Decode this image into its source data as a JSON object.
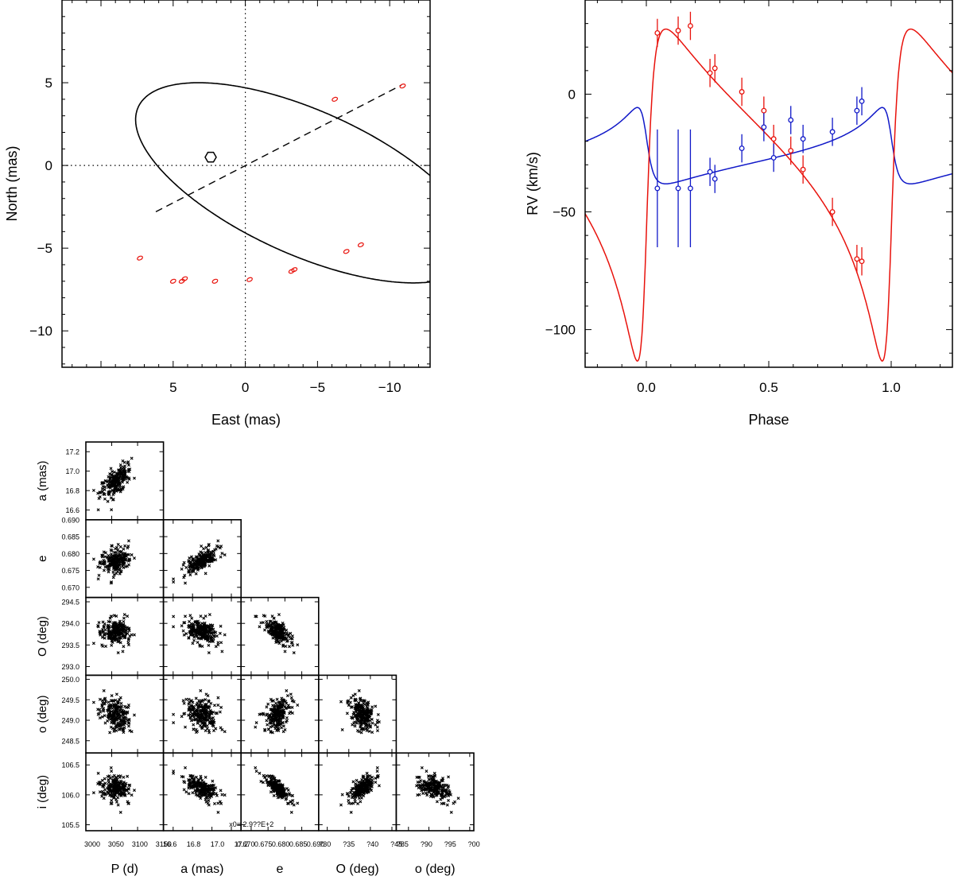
{
  "chart_data": [
    {
      "id": "orbit",
      "type": "line",
      "title": "",
      "xlabel": "East (mas)",
      "ylabel": "North (mas)",
      "xlim": [
        12.7,
        -12.8
      ],
      "ylim": [
        -12.2,
        10.0
      ],
      "xticks": [
        5,
        0,
        -5,
        -10
      ],
      "yticks": [
        5,
        0,
        -5,
        -10
      ],
      "xtick_labels": [
        "5",
        "0",
        "−5",
        "−10"
      ],
      "ytick_labels": [
        "5",
        "0",
        "−5",
        "−10"
      ],
      "orbit": {
        "a": 17.0,
        "e": 0.678,
        "Omega_deg": 293.8,
        "omega_deg": 249.1,
        "i_deg": 106.1
      },
      "primary": {
        "x": 2.4,
        "y": 0.5
      },
      "line_of_nodes": [
        [
          6.2,
          -2.8
        ],
        [
          -10.8,
          4.85
        ]
      ],
      "observations": [
        {
          "x": 7.3,
          "y": -5.6
        },
        {
          "x": 5.0,
          "y": -7.0
        },
        {
          "x": 4.4,
          "y": -7.0
        },
        {
          "x": 4.2,
          "y": -6.85
        },
        {
          "x": 2.1,
          "y": -7.0
        },
        {
          "x": -0.3,
          "y": -6.9
        },
        {
          "x": -3.2,
          "y": -6.4
        },
        {
          "x": -3.4,
          "y": -6.3
        },
        {
          "x": -6.2,
          "y": 4.0
        },
        {
          "x": -7.0,
          "y": -5.2
        },
        {
          "x": -8.0,
          "y": -4.8
        },
        {
          "x": -10.9,
          "y": 4.8
        }
      ]
    },
    {
      "id": "rv",
      "type": "line",
      "title": "",
      "xlabel": "Phase",
      "ylabel": "RV (km/s)",
      "xlim": [
        -0.25,
        1.25
      ],
      "ylim": [
        -116,
        40
      ],
      "xticks": [
        0.0,
        0.5,
        1.0
      ],
      "yticks": [
        0,
        -50,
        -100
      ],
      "xtick_labels": [
        "0.0",
        "0.5",
        "1.0"
      ],
      "ytick_labels": [
        "0",
        "−50",
        "−100"
      ],
      "model": {
        "gamma": -25.8,
        "K_red": 70.5,
        "K_blue": 16.2,
        "e": 0.678,
        "omega_deg": 249.1,
        "phase_offset": 0.0
      },
      "series": [
        {
          "name": "red component",
          "color": "#e8120c",
          "points": [
            {
              "phase": 0.045,
              "rv": 26,
              "err": 6
            },
            {
              "phase": 0.13,
              "rv": 27,
              "err": 6
            },
            {
              "phase": 0.18,
              "rv": 29,
              "err": 6
            },
            {
              "phase": 0.26,
              "rv": 9,
              "err": 6
            },
            {
              "phase": 0.28,
              "rv": 11,
              "err": 6
            },
            {
              "phase": 0.39,
              "rv": 1,
              "err": 6
            },
            {
              "phase": 0.48,
              "rv": -7,
              "err": 6
            },
            {
              "phase": 0.52,
              "rv": -19,
              "err": 6
            },
            {
              "phase": 0.59,
              "rv": -24,
              "err": 6
            },
            {
              "phase": 0.64,
              "rv": -32,
              "err": 6
            },
            {
              "phase": 0.76,
              "rv": -50,
              "err": 6
            },
            {
              "phase": 0.86,
              "rv": -70,
              "err": 6
            },
            {
              "phase": 0.88,
              "rv": -71,
              "err": 6
            }
          ]
        },
        {
          "name": "blue component",
          "color": "#1018c8",
          "points": [
            {
              "phase": 0.045,
              "rv": -40,
              "err": 25
            },
            {
              "phase": 0.13,
              "rv": -40,
              "err": 25
            },
            {
              "phase": 0.18,
              "rv": -40,
              "err": 25
            },
            {
              "phase": 0.26,
              "rv": -33,
              "err": 6
            },
            {
              "phase": 0.28,
              "rv": -36,
              "err": 6
            },
            {
              "phase": 0.39,
              "rv": -23,
              "err": 6
            },
            {
              "phase": 0.48,
              "rv": -14,
              "err": 6
            },
            {
              "phase": 0.52,
              "rv": -27,
              "err": 6
            },
            {
              "phase": 0.59,
              "rv": -11,
              "err": 6
            },
            {
              "phase": 0.64,
              "rv": -19,
              "err": 6
            },
            {
              "phase": 0.76,
              "rv": -16,
              "err": 6
            },
            {
              "phase": 0.86,
              "rv": -7,
              "err": 6
            },
            {
              "phase": 0.88,
              "rv": -3,
              "err": 6
            }
          ]
        }
      ]
    },
    {
      "id": "corner",
      "type": "scatter",
      "title": "",
      "annotation": "x0= 2.9??E+2",
      "parameters": [
        {
          "key": "P",
          "label": "P (d)",
          "lim": [
            3000,
            3150
          ],
          "ticks": [
            3000,
            3050,
            3100,
            3150
          ],
          "tick_labels": [
            "3000",
            "3050",
            "3100",
            "3150"
          ],
          "mean": 3058,
          "sd": 15
        },
        {
          "key": "a",
          "label": "a (mas)",
          "lim": [
            16.5,
            17.3
          ],
          "ticks": [
            16.6,
            16.8,
            17.0,
            17.2
          ],
          "tick_labels": [
            "16.6",
            "16.8",
            "17.0",
            "17.2"
          ],
          "mean": 16.9,
          "sd": 0.09
        },
        {
          "key": "e",
          "label": "e",
          "lim": [
            0.667,
            0.69
          ],
          "ticks": [
            0.67,
            0.675,
            0.68,
            0.685,
            0.69
          ],
          "tick_labels": [
            "0.670",
            "0.675",
            "0.680",
            "0.685",
            "0.690"
          ],
          "mean": 0.678,
          "sd": 0.002
        },
        {
          "key": "O",
          "label": "O (deg)",
          "lim": [
            292.8,
            294.6
          ],
          "ticks": [
            293.0,
            293.5,
            294.0,
            294.5
          ],
          "tick_labels": [
            "293.0",
            "293.5",
            "294.0",
            "294.5"
          ],
          "mean": 293.8,
          "sd": 0.17
        },
        {
          "key": "o",
          "label": "o (deg)",
          "lim": [
            248.2,
            250.1
          ],
          "ticks": [
            248.5,
            249.0,
            249.5,
            250.0
          ],
          "tick_labels": [
            "248.5",
            "249.0",
            "249.5",
            "250.0"
          ],
          "mean": 249.15,
          "sd": 0.22
        },
        {
          "key": "i",
          "label": "i (deg)",
          "lim": [
            105.4,
            106.7
          ],
          "ticks": [
            105.5,
            106.0,
            106.5
          ],
          "tick_labels": [
            "105.5",
            "106.0",
            "106.5"
          ],
          "mean": 106.1,
          "sd": 0.11
        }
      ],
      "bottom_tick_labels": [
        [
          "3000",
          "3050",
          "3100",
          "3150"
        ],
        [
          "16.6",
          "16.8",
          "17.0",
          "17.2"
        ],
        [
          "0.670",
          "0.675",
          "0.680",
          "0.685",
          "0.690"
        ],
        [
          "?30",
          "?35",
          "?40",
          "?45"
        ],
        [
          "?85",
          "?90",
          "?95",
          "?00"
        ]
      ],
      "correlations": {
        "P-a": 0.55,
        "P-e": 0.25,
        "a-e": 0.6,
        "P-O": 0.0,
        "a-O": -0.3,
        "e-O": -0.4,
        "P-o": -0.35,
        "a-o": 0.05,
        "e-o": 0.55,
        "O-o": 0.0,
        "P-i": -0.2,
        "a-i": -0.85,
        "e-i": -0.6,
        "O-i": 0.3,
        "o-i": -0.3
      },
      "n_samples": 220
    }
  ]
}
